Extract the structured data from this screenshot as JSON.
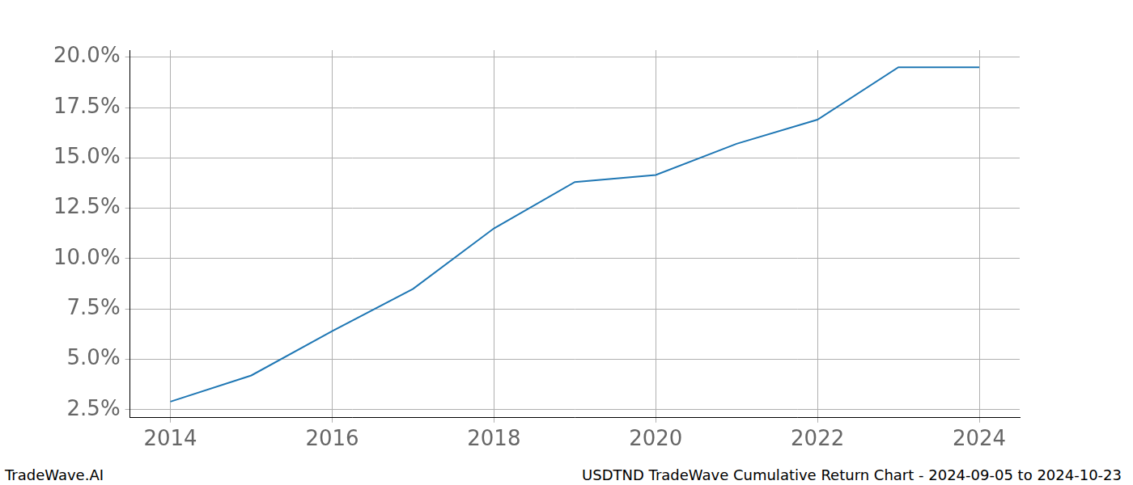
{
  "chart_data": {
    "type": "line",
    "title": "USDTND TradeWave Cumulative Return Chart - 2024-09-05 to 2024-10-23",
    "annotations": [
      "TradeWave.AI"
    ],
    "x": [
      2014,
      2015,
      2016,
      2017,
      2018,
      2019,
      2020,
      2021,
      2022,
      2023,
      2024
    ],
    "values": [
      2.9,
      4.2,
      6.4,
      8.5,
      11.5,
      13.8,
      14.15,
      15.7,
      16.9,
      19.5,
      19.5
    ],
    "color": "#1f77b4",
    "xlim": [
      2013.5,
      2024.5
    ],
    "xticks": [
      2014,
      2016,
      2018,
      2020,
      2022,
      2024
    ],
    "ylim": [
      2.1,
      20.35
    ],
    "yticks": [
      {
        "value": 2.5,
        "label": "2.5%"
      },
      {
        "value": 5.0,
        "label": "5.0%"
      },
      {
        "value": 7.5,
        "label": "7.5%"
      },
      {
        "value": 10.0,
        "label": "10.0%"
      },
      {
        "value": 12.5,
        "label": "12.5%"
      },
      {
        "value": 15.0,
        "label": "15.0%"
      },
      {
        "value": 17.5,
        "label": "17.5%"
      },
      {
        "value": 20.0,
        "label": "20.0%"
      }
    ],
    "grid": true
  }
}
